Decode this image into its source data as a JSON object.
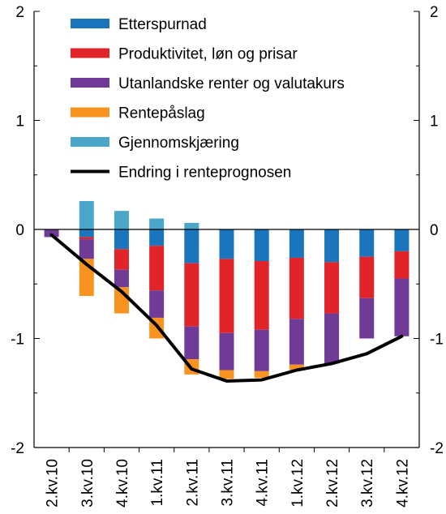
{
  "chart_data": {
    "type": "bar",
    "stacked": true,
    "categories": [
      "2.kv.10",
      "3.kv.10",
      "4.kv.10",
      "1.kv.11",
      "2.kv.11",
      "3.kv.11",
      "4.kv.11",
      "1.kv.12",
      "2.kv.12",
      "3.kv.12",
      "4.kv.12"
    ],
    "series": [
      {
        "name": "Etterspurnad",
        "color": "#1a75bc",
        "values": [
          0,
          -0.07,
          -0.18,
          -0.15,
          -0.31,
          -0.27,
          -0.29,
          -0.26,
          -0.3,
          -0.25,
          -0.2
        ]
      },
      {
        "name": "Produktivitet, løn og prisar",
        "color": "#e1242a",
        "values": [
          0,
          -0.02,
          -0.19,
          -0.41,
          -0.58,
          -0.68,
          -0.63,
          -0.56,
          -0.47,
          -0.38,
          -0.25
        ]
      },
      {
        "name": "Utanlandske renter og valutakurs",
        "color": "#6f3b97",
        "values": [
          -0.07,
          -0.18,
          -0.16,
          -0.25,
          -0.3,
          -0.34,
          -0.38,
          -0.42,
          -0.46,
          -0.37,
          -0.53
        ]
      },
      {
        "name": "Rentepåslag",
        "color": "#f7931e",
        "values": [
          0,
          -0.34,
          -0.24,
          -0.19,
          -0.14,
          -0.08,
          -0.06,
          -0.05,
          0,
          0,
          0
        ]
      },
      {
        "name": "Gjennomskjæring",
        "color": "#4aa7c9",
        "values": [
          0,
          0.26,
          0.17,
          0.1,
          0.06,
          0,
          0,
          0,
          0,
          0,
          0
        ]
      }
    ],
    "line": {
      "name": "Endring i renteprognosen",
      "color": "#000000",
      "values": [
        -0.05,
        -0.32,
        -0.57,
        -0.88,
        -1.28,
        -1.39,
        -1.38,
        -1.29,
        -1.23,
        -1.14,
        -0.98
      ]
    },
    "ylim": [
      -2,
      2
    ],
    "yticks": [
      "2",
      "1",
      "0",
      "-1",
      "-2"
    ],
    "ytick_values": [
      2,
      1,
      0,
      -1,
      -2
    ],
    "secondary_y_axis": true,
    "legend_position": "top-left"
  }
}
